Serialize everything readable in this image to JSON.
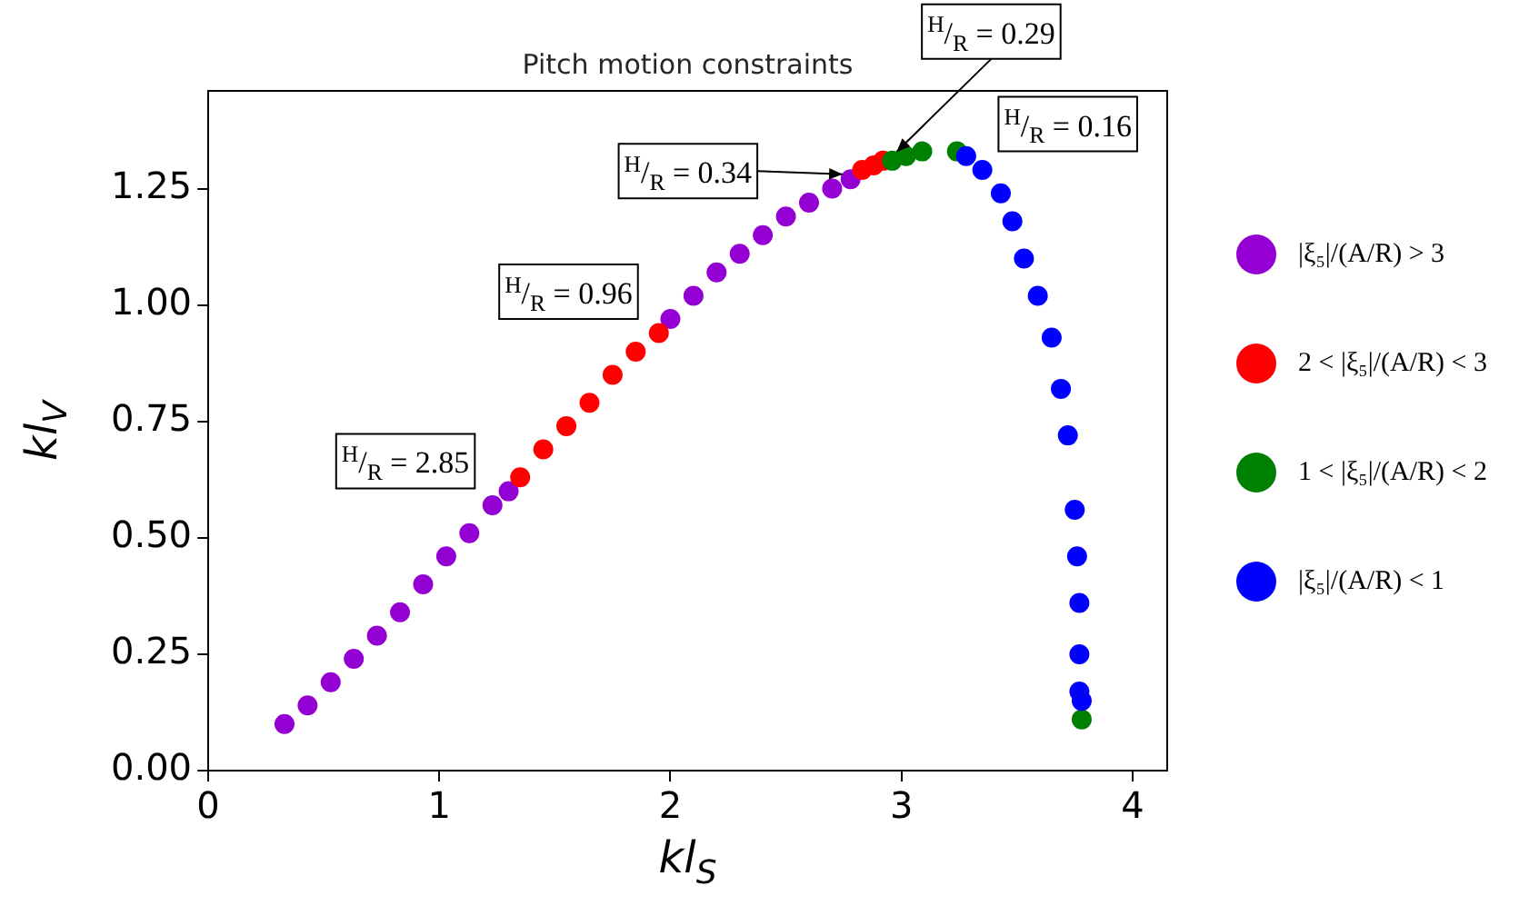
{
  "chart_data": {
    "type": "scatter",
    "title": "Pitch motion constraints",
    "xlabel": "kl$_{S}$",
    "ylabel": "kl$_{V}$",
    "xlim": [
      0,
      4.15
    ],
    "ylim": [
      0,
      1.46
    ],
    "xticks": [
      0,
      1,
      2,
      3,
      4
    ],
    "yticks": [
      {
        "value": 0,
        "label": "0.00"
      },
      {
        "value": 0.25,
        "label": "0.25"
      },
      {
        "value": 0.5,
        "label": "0.50"
      },
      {
        "value": 0.75,
        "label": "0.75"
      },
      {
        "value": 1,
        "label": "1.00"
      },
      {
        "value": 1.25,
        "label": "1.25"
      }
    ],
    "grid": false,
    "legend": "right",
    "marker": "circle",
    "series": [
      {
        "name": "|ξ₅|/(A/R) > 3",
        "color": "#9400d3",
        "x": [
          0.33,
          0.43,
          0.53,
          0.63,
          0.73,
          0.83,
          0.93,
          1.03,
          1.13,
          1.23,
          1.3,
          2.0,
          2.1,
          2.2,
          2.3,
          2.4,
          2.5,
          2.6,
          2.7,
          2.78
        ],
        "values": [
          0.1,
          0.14,
          0.19,
          0.24,
          0.29,
          0.34,
          0.4,
          0.46,
          0.51,
          0.57,
          0.6,
          0.97,
          1.02,
          1.07,
          1.11,
          1.15,
          1.19,
          1.22,
          1.25,
          1.27
        ]
      },
      {
        "name": "2 < |ξ₅|/(A/R) < 3",
        "color": "#ff0000",
        "x": [
          1.35,
          1.45,
          1.55,
          1.65,
          1.75,
          1.85,
          1.95,
          2.83,
          2.88,
          2.92
        ],
        "values": [
          0.63,
          0.69,
          0.74,
          0.79,
          0.85,
          0.9,
          0.94,
          1.29,
          1.3,
          1.31
        ]
      },
      {
        "name": "1 < |ξ₅|/(A/R) < 2",
        "color": "#008000",
        "x": [
          2.96,
          3.02,
          3.09,
          3.24,
          3.78
        ],
        "values": [
          1.31,
          1.32,
          1.33,
          1.33,
          0.11
        ]
      },
      {
        "name": "|ξ₅|/(A/R) < 1",
        "color": "#0000ff",
        "x": [
          3.28,
          3.35,
          3.43,
          3.48,
          3.53,
          3.59,
          3.65,
          3.69,
          3.72,
          3.75,
          3.76,
          3.77,
          3.77,
          3.77,
          3.78
        ],
        "values": [
          1.32,
          1.29,
          1.24,
          1.18,
          1.1,
          1.02,
          0.93,
          0.82,
          0.72,
          0.56,
          0.46,
          0.36,
          0.25,
          0.17,
          0.15
        ]
      }
    ],
    "annotations": [
      {
        "text": "$^{H}$/$_{R}$ = 2.85",
        "x": 1.31,
        "y": 0.61
      },
      {
        "text": "$^{H}$/$_{R}$ = 0.96",
        "x": 2.0,
        "y": 0.97
      },
      {
        "text": "$^{H}$/$_{R}$ = 0.34",
        "x": 2.8,
        "y": 1.28
      },
      {
        "text": "$^{H}$/$_{R}$ = 0.29",
        "x": 2.94,
        "y": 1.31
      },
      {
        "text": "$^{H}$/$_{R}$ = 0.16",
        "x": 3.24,
        "y": 1.33
      }
    ]
  }
}
